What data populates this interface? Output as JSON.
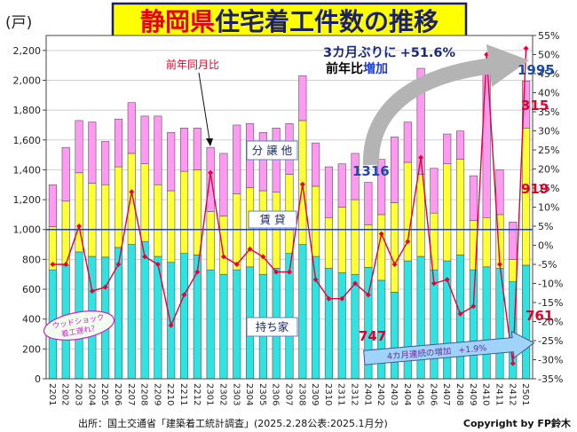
{
  "title": {
    "prefix": "静岡県",
    "rest": "住宅着工件数の推移"
  },
  "colors": {
    "title_prefix": "#e8000b",
    "title_rest": "#1b1f6b",
    "title_box": "#ffff00",
    "owner": "#2fe3e3",
    "rental": "#ffff33",
    "other": "#ff99f2",
    "yoy_line": "#e6003c",
    "reference_line": "#1f3fbf",
    "blue_label": "#1f4aa8",
    "red_label": "#e0002a",
    "curved_arrow": "#b4b4b4",
    "streak_arrow": "#9fd3f7",
    "streak_text": "#6a2da0",
    "wood_shock": "#cc22cc"
  },
  "chart_data": {
    "type": "bar",
    "stacked": true,
    "y_unit": "(戸)",
    "categories": [
      "2201",
      "2202",
      "2203",
      "2204",
      "2205",
      "2206",
      "2207",
      "2208",
      "2209",
      "2210",
      "2211",
      "2212",
      "2301",
      "2302",
      "2303",
      "2304",
      "2305",
      "2306",
      "2307",
      "2308",
      "2309",
      "2310",
      "2311",
      "2312",
      "2401",
      "2402",
      "2403",
      "2404",
      "2405",
      "2406",
      "2407",
      "2408",
      "2409",
      "2410",
      "2411",
      "2412",
      "2501"
    ],
    "ylim": [
      0,
      2300
    ],
    "y_ticks": [
      "0",
      "200",
      "400",
      "600",
      "800",
      "1,000",
      "1,200",
      "1,400",
      "1,600",
      "1,800",
      "2,000",
      "2,200"
    ],
    "y2lim": [
      -35,
      55
    ],
    "y2_ticks": [
      "55%",
      "50%",
      "45%",
      "40%",
      "35%",
      "30%",
      "25%",
      "20%",
      "15%",
      "10%",
      "5%",
      "0%",
      "-5%",
      "-10%",
      "-15%",
      "-20%",
      "-25%",
      "-30%",
      "-35%"
    ],
    "series": [
      {
        "name": "持ち家",
        "values": [
          730,
          760,
          850,
          820,
          815,
          880,
          900,
          920,
          820,
          780,
          840,
          830,
          730,
          700,
          730,
          750,
          700,
          740,
          840,
          900,
          820,
          740,
          710,
          700,
          747,
          660,
          580,
          790,
          820,
          730,
          790,
          830,
          730,
          750,
          740,
          650,
          761
        ]
      },
      {
        "name": "賃 貸",
        "values": [
          290,
          430,
          530,
          490,
          485,
          540,
          610,
          520,
          480,
          480,
          550,
          570,
          390,
          390,
          510,
          530,
          560,
          510,
          530,
          830,
          470,
          340,
          440,
          500,
          283,
          440,
          600,
          660,
          550,
          380,
          650,
          640,
          330,
          330,
          360,
          150,
          919
        ]
      },
      {
        "name": "分 譲 他",
        "values": [
          280,
          360,
          350,
          410,
          290,
          320,
          340,
          320,
          460,
          390,
          290,
          280,
          430,
          420,
          460,
          430,
          390,
          430,
          340,
          300,
          290,
          340,
          290,
          310,
          286,
          370,
          440,
          270,
          710,
          300,
          200,
          190,
          300,
          970,
          300,
          250,
          315
        ]
      }
    ],
    "line": {
      "name": "前年同月比",
      "axis": "right",
      "values": [
        -5,
        -5,
        5,
        -12,
        -11,
        -5,
        14,
        -3,
        -5,
        -21,
        -13,
        -7,
        19,
        -3,
        -5,
        -1,
        -3,
        -7,
        -7,
        16,
        -9,
        -14,
        -14,
        -10,
        -13,
        3,
        -5,
        1,
        23,
        -10,
        -9,
        -18,
        -16,
        50,
        -5,
        -31,
        51.6
      ]
    },
    "reference_line": {
      "axis": "left",
      "value": 1000
    },
    "grid": true
  },
  "annotations": {
    "headline_1": "3カ月ぶりに",
    "headline_value": "+51.6%",
    "headline_2a": "前年比",
    "headline_2b": "増加",
    "latest_total": "1995",
    "latest_other": "315",
    "latest_rental": "919",
    "latest_owner": "761",
    "prev_total": "1316",
    "prev_owner": "747",
    "wood_shock_1": "ウッドショック",
    "wood_shock_2": "着工遅れ？",
    "streak_text": "4カ月連続の増加",
    "streak_value": "+1.9%"
  },
  "footer": {
    "source": "出所：国土交通省「建築着工統計調査」(2025.2.28公表:2025.1月分)",
    "copyright": "Copyright by FP鈴木"
  }
}
